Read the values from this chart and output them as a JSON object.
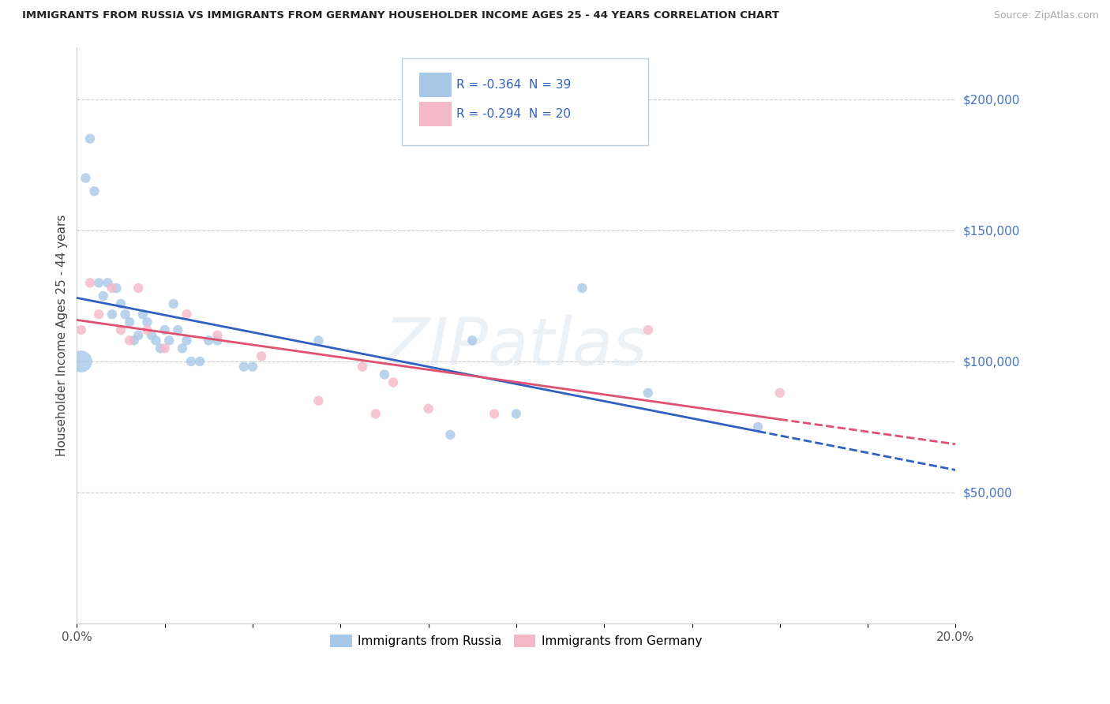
{
  "title": "IMMIGRANTS FROM RUSSIA VS IMMIGRANTS FROM GERMANY HOUSEHOLDER INCOME AGES 25 - 44 YEARS CORRELATION CHART",
  "source": "Source: ZipAtlas.com",
  "ylabel": "Householder Income Ages 25 - 44 years",
  "russia_R": -0.364,
  "russia_N": 39,
  "germany_R": -0.294,
  "germany_N": 20,
  "russia_color": "#a8c8e8",
  "germany_color": "#f4b8c8",
  "russia_line_color": "#3060c0",
  "germany_line_color": "#e05070",
  "russia_x": [
    0.001,
    0.002,
    0.003,
    0.004,
    0.005,
    0.006,
    0.007,
    0.008,
    0.009,
    0.01,
    0.011,
    0.012,
    0.013,
    0.014,
    0.015,
    0.016,
    0.017,
    0.018,
    0.019,
    0.02,
    0.021,
    0.022,
    0.023,
    0.024,
    0.025,
    0.026,
    0.028,
    0.03,
    0.032,
    0.038,
    0.04,
    0.055,
    0.07,
    0.085,
    0.09,
    0.1,
    0.115,
    0.13,
    0.155
  ],
  "russia_y": [
    100000,
    170000,
    185000,
    165000,
    130000,
    125000,
    130000,
    118000,
    128000,
    122000,
    118000,
    115000,
    108000,
    110000,
    118000,
    115000,
    110000,
    108000,
    105000,
    112000,
    108000,
    122000,
    112000,
    105000,
    108000,
    100000,
    100000,
    108000,
    108000,
    98000,
    98000,
    108000,
    95000,
    72000,
    108000,
    80000,
    128000,
    88000,
    75000
  ],
  "russia_sizes": [
    400,
    80,
    80,
    80,
    80,
    80,
    80,
    80,
    80,
    80,
    80,
    80,
    80,
    80,
    80,
    80,
    80,
    80,
    80,
    80,
    80,
    80,
    80,
    80,
    80,
    80,
    80,
    80,
    80,
    80,
    80,
    80,
    80,
    80,
    80,
    80,
    80,
    80,
    80
  ],
  "germany_x": [
    0.001,
    0.003,
    0.005,
    0.008,
    0.01,
    0.012,
    0.014,
    0.016,
    0.02,
    0.025,
    0.032,
    0.042,
    0.055,
    0.065,
    0.068,
    0.072,
    0.08,
    0.095,
    0.13,
    0.16
  ],
  "germany_y": [
    112000,
    130000,
    118000,
    128000,
    112000,
    108000,
    128000,
    112000,
    105000,
    118000,
    110000,
    102000,
    85000,
    98000,
    80000,
    92000,
    82000,
    80000,
    112000,
    88000
  ],
  "germany_sizes": [
    80,
    80,
    80,
    80,
    80,
    80,
    80,
    80,
    80,
    80,
    80,
    80,
    80,
    80,
    80,
    80,
    80,
    80,
    80,
    80
  ],
  "xlim": [
    0.0,
    0.2
  ],
  "ylim": [
    0,
    220000
  ],
  "yticks": [
    50000,
    100000,
    150000,
    200000
  ],
  "ytick_labels": [
    "$50,000",
    "$100,000",
    "$150,000",
    "$200,000"
  ],
  "grid_dashes": [
    4,
    4
  ],
  "grid_color": "#cccccc",
  "background_color": "#ffffff",
  "watermark": "ZIPatlas",
  "legend_russia_label": "Immigrants from Russia",
  "legend_germany_label": "Immigrants from Germany",
  "legend_box_color": "#f0f4ff",
  "legend_border_color": "#aabbdd"
}
